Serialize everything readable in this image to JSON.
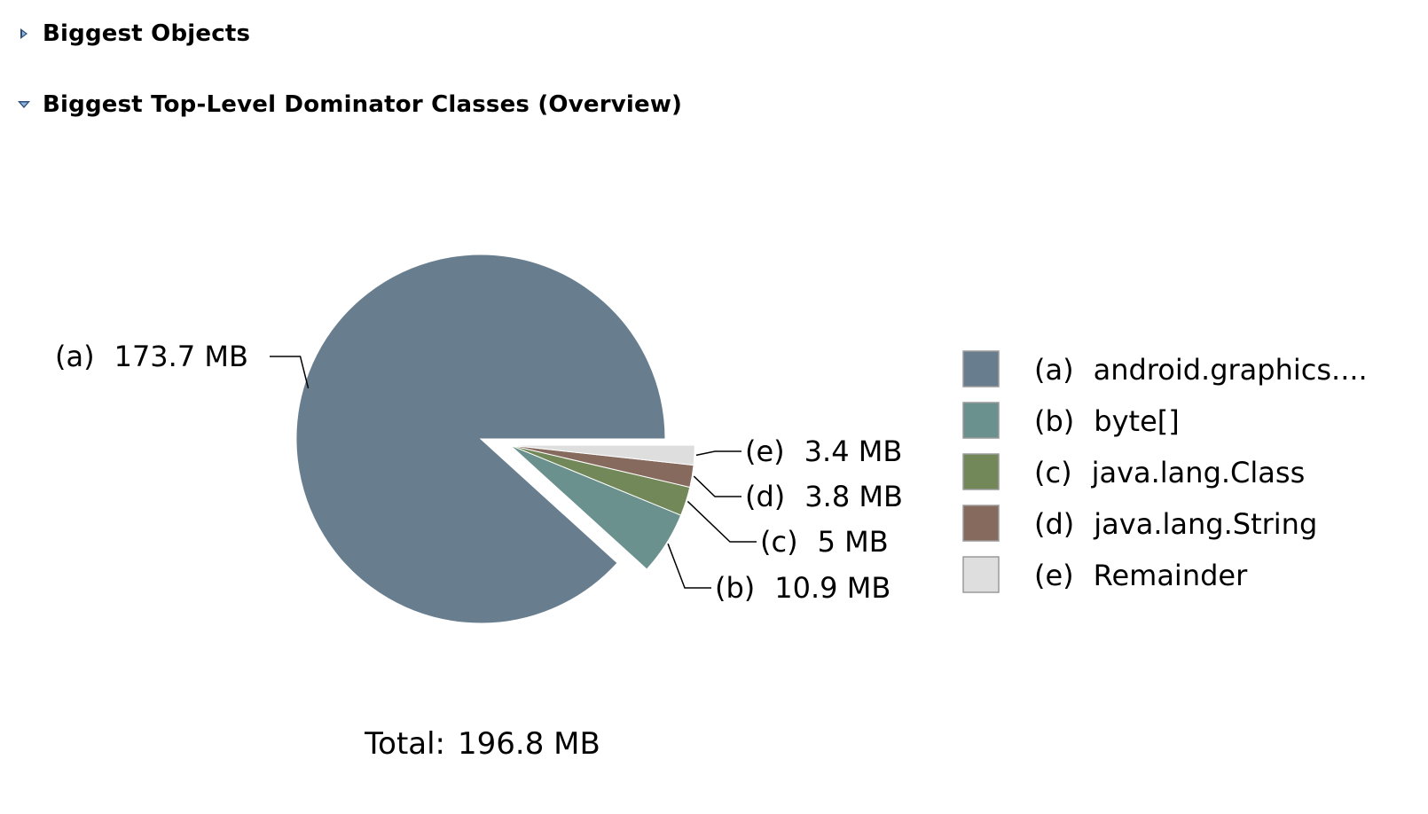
{
  "sections": [
    {
      "title": "Biggest Objects",
      "expanded": false
    },
    {
      "title": "Biggest Top-Level Dominator Classes (Overview)",
      "expanded": true
    }
  ],
  "chart_data": {
    "type": "pie",
    "slices": [
      {
        "key": "(a)",
        "name": "android.graphics....",
        "value": 173.7,
        "label": "173.7 MB",
        "color": "#687E8F"
      },
      {
        "key": "(b)",
        "name": "byte[]",
        "value": 10.9,
        "label": "10.9 MB",
        "color": "#6A918E"
      },
      {
        "key": "(c)",
        "name": "java.lang.Class",
        "value": 5,
        "label": "5 MB",
        "color": "#728858"
      },
      {
        "key": "(d)",
        "name": "java.lang.String",
        "value": 3.8,
        "label": "3.8 MB",
        "color": "#866A5E"
      },
      {
        "key": "(e)",
        "name": "Remainder",
        "value": 3.4,
        "label": "3.4 MB",
        "color": "#DEDEDE"
      }
    ],
    "total_label": "Total:",
    "total_value": "196.8 MB",
    "legend_position": "right",
    "exploded": [
      "(b)",
      "(c)",
      "(d)",
      "(e)"
    ]
  }
}
